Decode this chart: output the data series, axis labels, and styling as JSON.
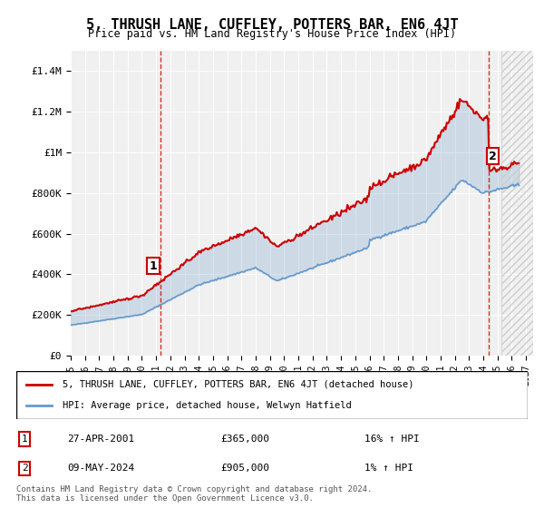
{
  "title": "5, THRUSH LANE, CUFFLEY, POTTERS BAR, EN6 4JT",
  "subtitle": "Price paid vs. HM Land Registry's House Price Index (HPI)",
  "ylabel_ticks": [
    "£0",
    "£200K",
    "£400K",
    "£600K",
    "£800K",
    "£1M",
    "£1.2M",
    "£1.4M"
  ],
  "ytick_values": [
    0,
    200000,
    400000,
    600000,
    800000,
    1000000,
    1200000,
    1400000
  ],
  "ylim": [
    0,
    1500000
  ],
  "xlim_start": 1995.0,
  "xlim_end": 2027.5,
  "background_color": "#ffffff",
  "plot_bg_color": "#f0f0f0",
  "red_line_color": "#cc0000",
  "blue_line_color": "#6699cc",
  "vline1_x": 2001.32,
  "vline2_x": 2024.36,
  "marker1_y": 365000,
  "marker2_y": 905000,
  "legend_label1": "5, THRUSH LANE, CUFFLEY, POTTERS BAR, EN6 4JT (detached house)",
  "legend_label2": "HPI: Average price, detached house, Welwyn Hatfield",
  "transaction1_label": "1",
  "transaction1_date": "27-APR-2001",
  "transaction1_price": "£365,000",
  "transaction1_hpi": "16% ↑ HPI",
  "transaction2_label": "2",
  "transaction2_date": "09-MAY-2024",
  "transaction2_price": "£905,000",
  "transaction2_hpi": "1% ↑ HPI",
  "footnote": "Contains HM Land Registry data © Crown copyright and database right 2024.\nThis data is licensed under the Open Government Licence v3.0.",
  "hpi_shade_color": "#aabbdd",
  "hatch_pattern": "////",
  "hatch_color": "#dddddd"
}
